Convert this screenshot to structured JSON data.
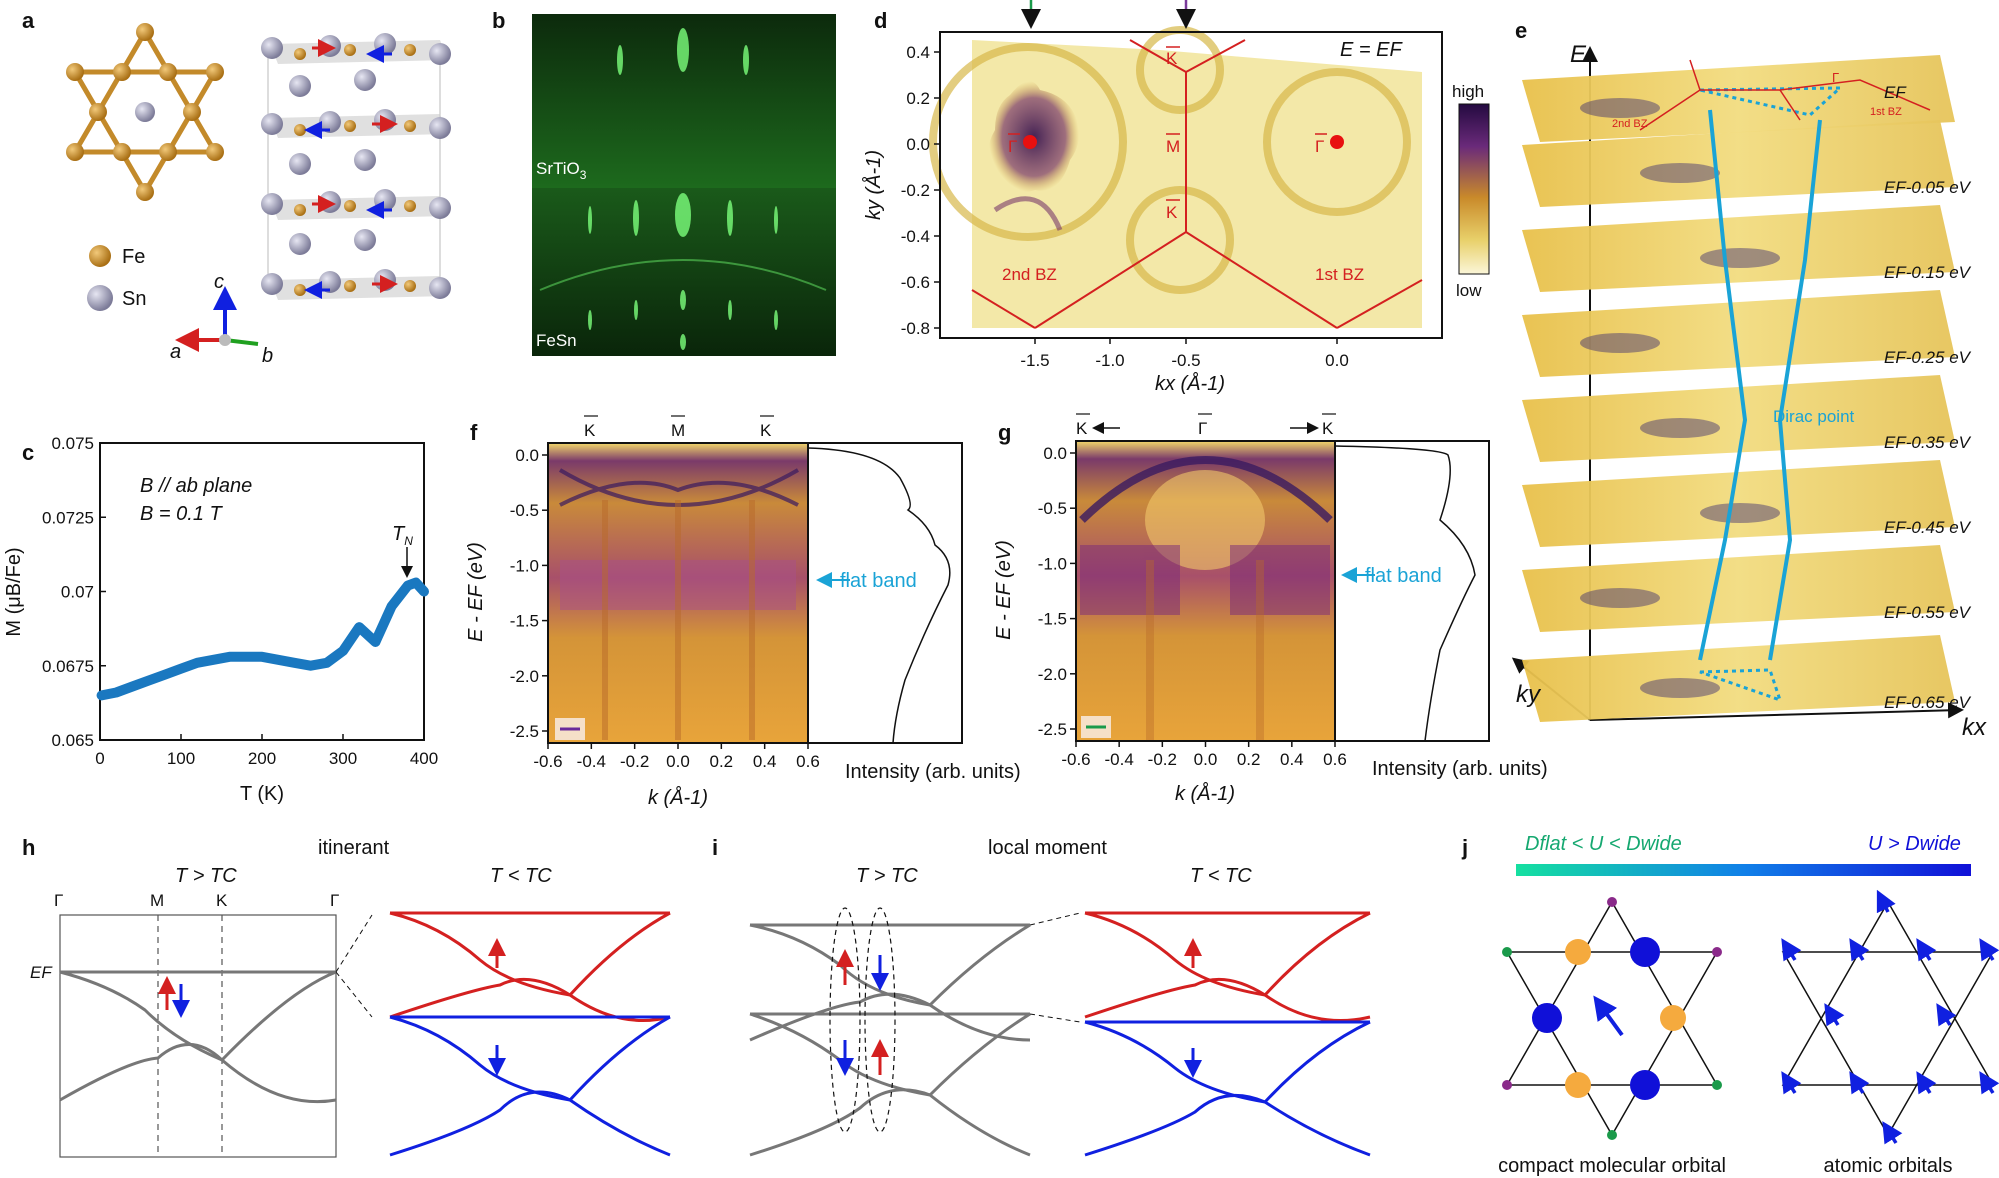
{
  "panel_letters": [
    "a",
    "b",
    "c",
    "d",
    "e",
    "f",
    "g",
    "h",
    "i",
    "j"
  ],
  "panel_a": {
    "legend": [
      "Fe",
      "Sn"
    ],
    "axes": [
      "a",
      "b",
      "c"
    ]
  },
  "panel_b": {
    "labels": [
      "SrTiO",
      "3",
      "FeSn"
    ]
  },
  "colors": {
    "fe": "#c38a2a",
    "sn": "#9c9bb5",
    "red": "#d42020",
    "blue": "#1020e0",
    "gray": "#707070",
    "cyan": "#1aa3d6"
  },
  "chart_data": [
    {
      "type": "line",
      "panel": "c",
      "annotations": [
        "B // ab plane",
        "B = 0.1 T",
        "T",
        "N"
      ],
      "xlabel": "T (K)",
      "ylabel": "M (μB/Fe)",
      "xlim": [
        0,
        400
      ],
      "ylim": [
        0.065,
        0.075
      ],
      "xticks": [
        "0",
        "100",
        "200",
        "300",
        "400"
      ],
      "yticks": [
        "0.065",
        "0.0675",
        "0.07",
        "0.0725",
        "0.075"
      ],
      "series": [
        {
          "x": [
            2,
            20,
            40,
            60,
            80,
            100,
            120,
            140,
            160,
            180,
            200,
            220,
            240,
            260,
            280,
            300,
            320,
            340,
            360,
            380,
            390,
            400
          ],
          "y": [
            0.0665,
            0.0666,
            0.0668,
            0.067,
            0.0672,
            0.0674,
            0.0676,
            0.0677,
            0.0678,
            0.0678,
            0.0678,
            0.0677,
            0.0676,
            0.0675,
            0.0676,
            0.068,
            0.0688,
            0.0683,
            0.0695,
            0.0702,
            0.0703,
            0.07
          ]
        }
      ]
    },
    {
      "type": "heatmap",
      "panel": "d",
      "title": "E = EF",
      "xlabel": "kx (Å-1)",
      "ylabel": "ky (Å-1)",
      "xticks": [
        "-1.5",
        "-1.0",
        "-0.5",
        "0.0"
      ],
      "yticks": [
        "0.4",
        "0.2",
        "0.0",
        "-0.2",
        "-0.4",
        "-0.6",
        "-0.8"
      ],
      "labels": [
        "K",
        "M",
        "K",
        "Γ",
        "Γ",
        "2nd BZ",
        "1st BZ"
      ],
      "colorbar": [
        "high",
        "low"
      ]
    },
    {
      "type": "heatmap",
      "panel": "f",
      "xlabel": "k (Å-1)",
      "ylabel": "E - EF (eV)",
      "xticks": [
        "-0.6",
        "-0.4",
        "-0.2",
        "0.0",
        "0.2",
        "0.4",
        "0.6"
      ],
      "yticks": [
        "0.0",
        "-0.5",
        "-1.0",
        "-1.5",
        "-2.0",
        "-2.5"
      ],
      "top_labels": [
        "K",
        "M",
        "K"
      ],
      "side_label": "Intensity (arb. units)",
      "annotation": "flat band"
    },
    {
      "type": "heatmap",
      "panel": "g",
      "xlabel": "k (Å-1)",
      "ylabel": "E - EF (eV)",
      "xticks": [
        "-0.6",
        "-0.4",
        "-0.2",
        "0.0",
        "0.2",
        "0.4",
        "0.6"
      ],
      "yticks": [
        "0.0",
        "-0.5",
        "-1.0",
        "-1.5",
        "-2.0",
        "-2.5"
      ],
      "top_labels": [
        "K",
        "Γ",
        "K"
      ],
      "side_label": "Intensity (arb. units)",
      "annotation": "flat band"
    }
  ],
  "panel_e": {
    "axis_labels": [
      "E",
      "ky",
      "kx"
    ],
    "slice_labels": [
      "EF",
      "EF-0.05 eV",
      "EF-0.15 eV",
      "EF-0.25 eV",
      "EF-0.35 eV",
      "EF-0.45 eV",
      "EF-0.55 eV",
      "EF-0.65 eV"
    ],
    "dirac_label": "Dirac point",
    "bz_labels": [
      "2nd BZ",
      "1st BZ",
      "Γ"
    ]
  },
  "panel_h": {
    "title": "itinerant",
    "sub1": "T > TC",
    "sub2": "T < TC",
    "kpoints": [
      "Γ",
      "M",
      "K",
      "Γ"
    ],
    "ef": "EF"
  },
  "panel_i": {
    "title": "local moment",
    "sub1": "T > TC",
    "sub2": "T < TC"
  },
  "panel_j": {
    "gradient_left": "Dflat < U < Dwide",
    "gradient_right": "U > Dwide",
    "caption_left": "compact molecular orbital",
    "caption_right": "atomic orbitals"
  }
}
